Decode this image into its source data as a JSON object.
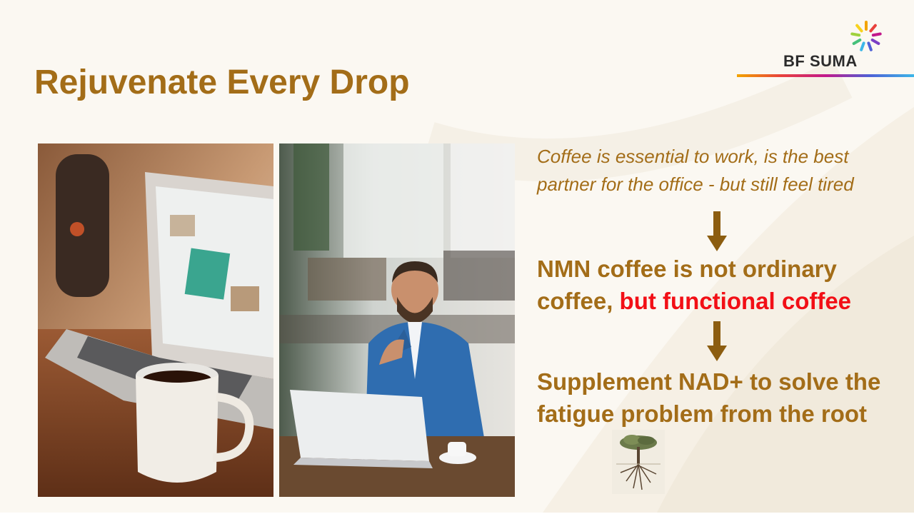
{
  "slide": {
    "title": "Rejuvenate Every Drop",
    "logo": {
      "text": "BF SUMA",
      "icon": "pinwheel-logo-icon"
    },
    "intro_text": "Coffee is essential to work, is the best partner for the office -  but still feel tired",
    "point1": {
      "text": "NMN coffee is not ordinary coffee, ",
      "highlight": "but functional coffee"
    },
    "point2": "Supplement NAD+ to solve the fatigue problem from the root",
    "icons": [
      "down-arrow-icon",
      "tree-roots-icon"
    ],
    "colors": {
      "title": "#a36d18",
      "highlight": "#f20f16",
      "background": "#fbf8f2"
    }
  }
}
